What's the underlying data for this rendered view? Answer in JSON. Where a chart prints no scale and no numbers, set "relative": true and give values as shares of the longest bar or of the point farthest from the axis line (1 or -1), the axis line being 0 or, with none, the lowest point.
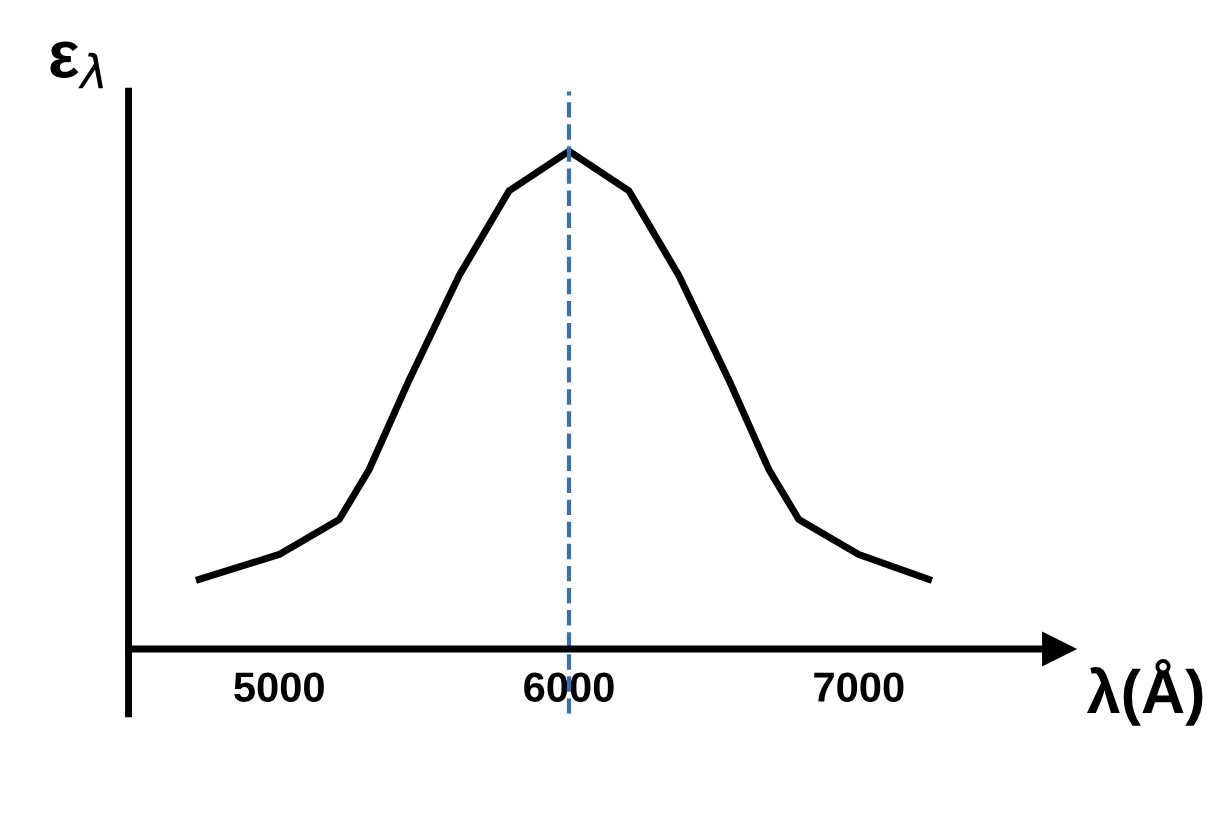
{
  "chart_data": {
    "type": "line",
    "relative": true,
    "xlabel": "λ(Å)",
    "ylabel": "ε$_{λ}$",
    "x": [
      4724,
      5000,
      5207,
      5310,
      5448,
      5621,
      5793,
      6000,
      6207,
      6379,
      6552,
      6690,
      6793,
      7000,
      7241
    ],
    "series": [
      {
        "color": "#000000",
        "values": [
          0.14,
          0.19,
          0.26,
          0.36,
          0.54,
          0.75,
          0.92,
          1.0,
          0.92,
          0.75,
          0.54,
          0.36,
          0.26,
          0.19,
          0.14
        ]
      }
    ],
    "xlim": [
      4480,
      7690
    ],
    "xticks": [
      5000,
      6000,
      7000
    ],
    "ref_lines": [
      {
        "axis": "x",
        "value": 6000,
        "color": "#3b6fb5",
        "line_style": "dashed"
      }
    ],
    "grid": false,
    "legend": false,
    "marker": "none",
    "line_style": "solid"
  }
}
